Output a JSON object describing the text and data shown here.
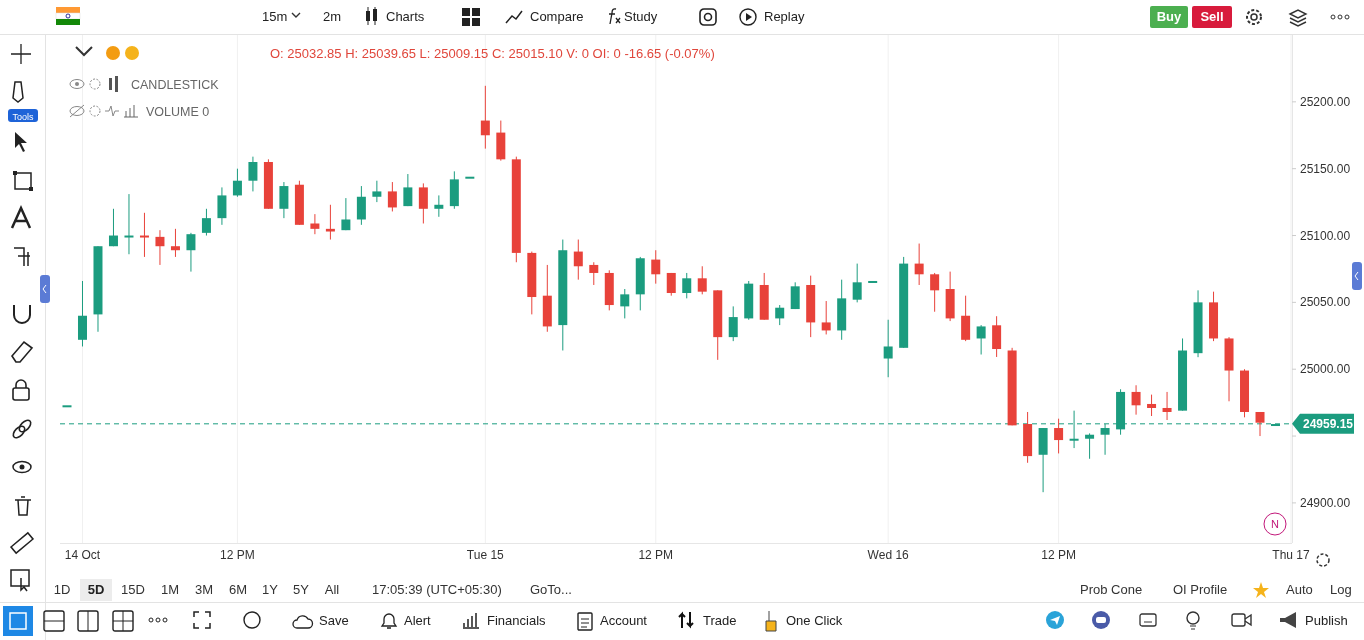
{
  "chart_data": {
    "type": "candlestick",
    "categories": [
      null,
      "14 Oct",
      null,
      null,
      null,
      null,
      null,
      null,
      null,
      null,
      null,
      "12 PM",
      null,
      null,
      null,
      null,
      null,
      null,
      null,
      null,
      null,
      null,
      null,
      null,
      null,
      null,
      null,
      "Tue 15",
      null,
      null,
      null,
      null,
      null,
      null,
      null,
      null,
      null,
      null,
      "12 PM",
      null,
      null,
      null,
      null,
      null,
      null,
      null,
      null,
      null,
      null,
      null,
      null,
      null,
      null,
      "Wed 16",
      null,
      null,
      null,
      null,
      null,
      null,
      null,
      null,
      null,
      null,
      "12 PM",
      null,
      null,
      null,
      null,
      null,
      null,
      null,
      null,
      null,
      null,
      null,
      null,
      null,
      null,
      "Thu 17"
    ],
    "ohlc": [
      [
        24973,
        24973,
        24973,
        24973
      ],
      [
        25022,
        25066,
        25017,
        25040
      ],
      [
        25041,
        25092,
        25028,
        25092
      ],
      [
        25092,
        25120,
        25092,
        25100
      ],
      [
        25099,
        25131,
        25086,
        25100
      ],
      [
        25100,
        25117,
        25084,
        25099
      ],
      [
        25099,
        25104,
        25078,
        25092
      ],
      [
        25092,
        25105,
        25084,
        25089
      ],
      [
        25089,
        25102,
        25073,
        25101
      ],
      [
        25102,
        25120,
        25100,
        25113
      ],
      [
        25113,
        25136,
        25108,
        25130
      ],
      [
        25130,
        25150,
        25129,
        25141
      ],
      [
        25141,
        25159,
        25133,
        25155
      ],
      [
        25155,
        25157,
        25120,
        25120
      ],
      [
        25120,
        25140,
        25113,
        25137
      ],
      [
        25138,
        25141,
        25108,
        25108
      ],
      [
        25109,
        25116,
        25101,
        25105
      ],
      [
        25105,
        25123,
        25097,
        25103
      ],
      [
        25104,
        25128,
        25104,
        25112
      ],
      [
        25112,
        25137,
        25108,
        25129
      ],
      [
        25129,
        25141,
        25125,
        25133
      ],
      [
        25133,
        25140,
        25118,
        25121
      ],
      [
        25122,
        25146,
        25122,
        25136
      ],
      [
        25136,
        25139,
        25109,
        25120
      ],
      [
        25120,
        25130,
        25114,
        25123
      ],
      [
        25122,
        25148,
        25120,
        25142
      ],
      [
        25144,
        25144,
        25144,
        25144
      ],
      [
        25186,
        25212,
        25165,
        25175
      ],
      [
        25177,
        25186,
        25156,
        25157
      ],
      [
        25157,
        25159,
        25080,
        25087
      ],
      [
        25087,
        25088,
        25041,
        25054
      ],
      [
        25055,
        25078,
        25028,
        25032
      ],
      [
        25033,
        25097,
        25014,
        25089
      ],
      [
        25088,
        25097,
        25067,
        25077
      ],
      [
        25078,
        25080,
        25063,
        25072
      ],
      [
        25072,
        25074,
        25044,
        25048
      ],
      [
        25047,
        25060,
        25038,
        25056
      ],
      [
        25056,
        25084,
        25044,
        25083
      ],
      [
        25082,
        25089,
        25064,
        25071
      ],
      [
        25072,
        25072,
        25055,
        25057
      ],
      [
        25057,
        25072,
        25053,
        25068
      ],
      [
        25068,
        25077,
        25056,
        25058
      ],
      [
        25059,
        25059,
        25007,
        25024
      ],
      [
        25024,
        25047,
        25021,
        25039
      ],
      [
        25038,
        25066,
        25037,
        25064
      ],
      [
        25063,
        25072,
        25037,
        25037
      ],
      [
        25038,
        25048,
        25033,
        25046
      ],
      [
        25045,
        25065,
        25045,
        25062
      ],
      [
        25063,
        25070,
        25024,
        25035
      ],
      [
        25035,
        25051,
        25026,
        25029
      ],
      [
        25029,
        25067,
        25022,
        25053
      ],
      [
        25052,
        25079,
        25050,
        25065
      ],
      [
        25066,
        25066,
        25066,
        25066
      ],
      [
        25008,
        25037,
        24994,
        25017
      ],
      [
        25016,
        25084,
        25016,
        25079
      ],
      [
        25079,
        25094,
        25063,
        25071
      ],
      [
        25071,
        25072,
        25043,
        25059
      ],
      [
        25060,
        25073,
        25036,
        25038
      ],
      [
        25040,
        25055,
        25021,
        25022
      ],
      [
        25023,
        25033,
        25011,
        25032
      ],
      [
        25032.85,
        25039.65,
        25009.15,
        25015.1
      ],
      [
        25014,
        25016,
        24958,
        24958
      ],
      [
        24959,
        24968,
        24930,
        24935
      ],
      [
        24936,
        24956,
        24908,
        24956
      ],
      [
        24956,
        24963,
        24937,
        24947
      ],
      [
        24947,
        24969,
        24941,
        24948
      ],
      [
        24948,
        24952,
        24933,
        24951
      ],
      [
        24951,
        24959,
        24936,
        24956
      ],
      [
        24955,
        24985,
        24951,
        24983
      ],
      [
        24983,
        24988,
        24966,
        24973
      ],
      [
        24974,
        24981,
        24965,
        24971
      ],
      [
        24971,
        24983,
        24962,
        24968
      ],
      [
        24969,
        25023,
        24969,
        25014
      ],
      [
        25012,
        25059,
        25009,
        25050
      ],
      [
        25050,
        25058,
        25021,
        25023
      ],
      [
        25023,
        25024,
        24976,
        24999
      ],
      [
        24999,
        25000,
        24964,
        24968
      ],
      [
        24968,
        24968,
        24950,
        24960
      ],
      [
        24959,
        24959,
        24959,
        24959
      ],
      null
    ],
    "colors": [
      "#1b9c7f",
      "#1b9c7f",
      "#1b9c7f",
      "#1b9c7f",
      "#1b9c7f",
      "#e8423a",
      "#e8423a",
      "#e8423a",
      "#1b9c7f",
      "#1b9c7f",
      "#1b9c7f",
      "#1b9c7f",
      "#1b9c7f",
      "#e8423a",
      "#1b9c7f",
      "#e8423a",
      "#e8423a",
      "#e8423a",
      "#1b9c7f",
      "#1b9c7f",
      "#1b9c7f",
      "#e8423a",
      "#1b9c7f",
      "#e8423a",
      "#1b9c7f",
      "#1b9c7f",
      "#1b9c7f",
      "#e8423a",
      "#e8423a",
      "#e8423a",
      "#e8423a",
      "#e8423a",
      "#1b9c7f",
      "#e8423a",
      "#e8423a",
      "#e8423a",
      "#1b9c7f",
      "#1b9c7f",
      "#e8423a",
      "#e8423a",
      "#1b9c7f",
      "#e8423a",
      "#e8423a",
      "#1b9c7f",
      "#1b9c7f",
      "#e8423a",
      "#1b9c7f",
      "#1b9c7f",
      "#e8423a",
      "#e8423a",
      "#1b9c7f",
      "#1b9c7f",
      "#1b9c7f",
      "#1b9c7f",
      "#1b9c7f",
      "#e8423a",
      "#e8423a",
      "#e8423a",
      "#e8423a",
      "#1b9c7f",
      "#e8423a",
      "#e8423a",
      "#e8423a",
      "#1b9c7f",
      "#e8423a",
      "#1b9c7f",
      "#1b9c7f",
      "#1b9c7f",
      "#1b9c7f",
      "#e8423a",
      "#e8423a",
      "#e8423a",
      "#1b9c7f",
      "#1b9c7f",
      "#e8423a",
      "#e8423a",
      "#e8423a",
      "#e8423a",
      "#1b9c7f",
      null
    ],
    "ylim": [
      24870,
      25250
    ],
    "yticks": [
      {
        "value": 24900,
        "label": "24900.00"
      },
      {
        "value": 24950,
        "label": null
      },
      {
        "value": 25000,
        "label": "25000.00"
      },
      {
        "value": 25050,
        "label": "25050.00"
      },
      {
        "value": 25100,
        "label": "25100.00"
      },
      {
        "value": 25150,
        "label": "25150.00"
      },
      {
        "value": 25200,
        "label": "25200.00"
      }
    ],
    "grid": "x",
    "ref_lines": [
      {
        "axis": "y",
        "value": 24959.15,
        "label": "24959.15",
        "color": "#1b9c7f",
        "line_style": "dashed"
      }
    ],
    "annotations": [
      "15m",
      "2m",
      "Charts",
      "Compare",
      "Study",
      "Replay",
      "Buy",
      "Sell",
      "O: 25032.85 H: 25039.65 L: 25009.15 C: 25015.10 V: 0 OI: 0 -16.65 (-0.07%)",
      "CANDLESTICK",
      "VOLUME  0",
      "Tools",
      "N",
      "1D",
      "5D",
      "15D",
      "1M",
      "3M",
      "6M",
      "1Y",
      "5Y",
      "All",
      "17:05:39 (UTC+05:30)",
      "GoTo...",
      "Prob Cone",
      "OI Profile",
      "Auto",
      "Log",
      "Save",
      "Alert",
      "Financials",
      "Account",
      "Trade",
      "One Click",
      "Publish"
    ]
  }
}
